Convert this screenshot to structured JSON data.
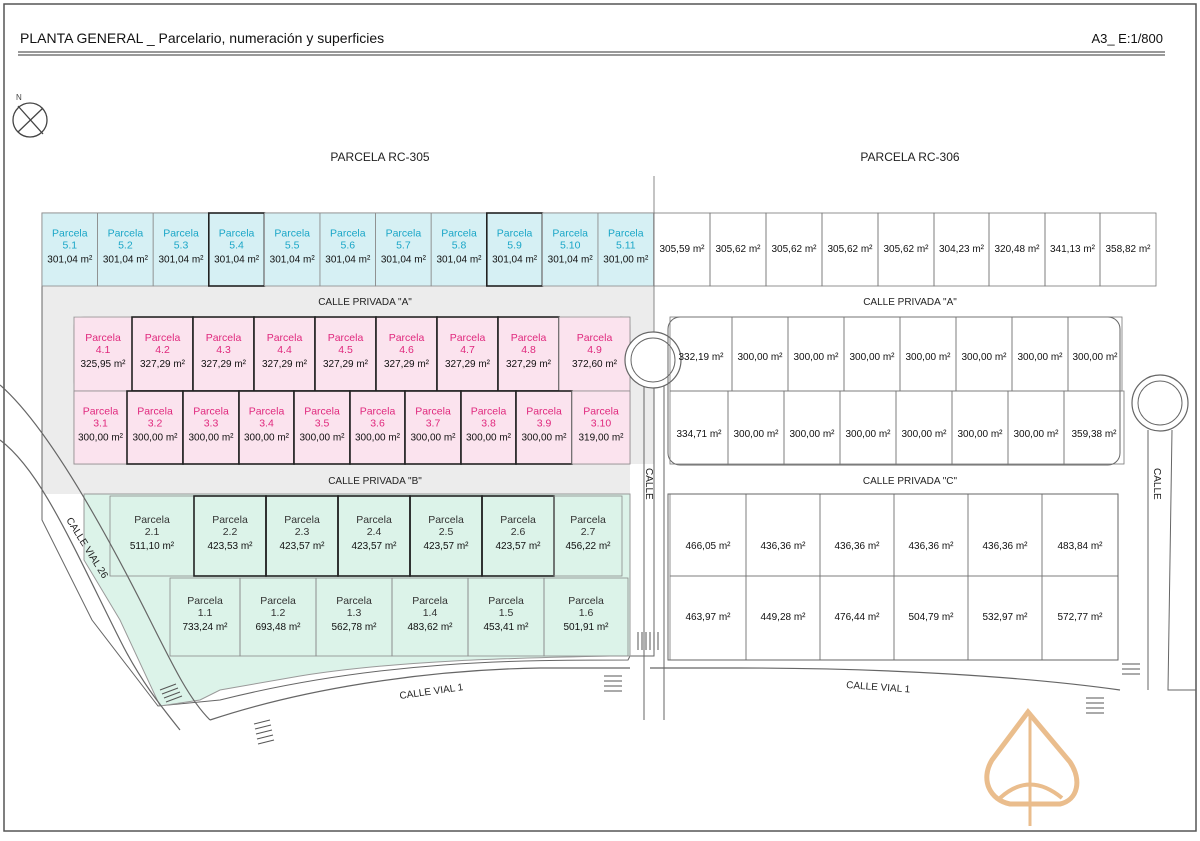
{
  "header": {
    "title": "PLANTA GENERAL _ Parcelario, numeración y superficies",
    "scale": "A3_ E:1/800"
  },
  "north_label": "N",
  "zones": {
    "rc305": "PARCELA RC-305",
    "rc306": "PARCELA RC-306"
  },
  "streets": {
    "privada_a_left": "CALLE PRIVADA \"A\"",
    "privada_a_right": "CALLE PRIVADA \"A\"",
    "privada_b": "CALLE PRIVADA \"B\"",
    "privada_c": "CALLE PRIVADA \"C\"",
    "calle_mid": "CALLE",
    "calle_right": "CALLE",
    "vial_26": "CALLE VIAL 26",
    "vial_1_left": "CALLE VIAL 1",
    "vial_1_right": "CALLE VIAL 1"
  },
  "colors": {
    "row5": "#d6f0f4",
    "row5_text": "#1aa6c7",
    "row4_3": "#fbe3ee",
    "row4_3_text": "#e0287d",
    "row2_1": "#dcf3e9",
    "road": "#ececec",
    "line": "#333333",
    "watermark": "#e3a867"
  },
  "parcels": {
    "word": "Parcela",
    "row5": [
      {
        "num": "5.1",
        "area": "301,04 m²"
      },
      {
        "num": "5.2",
        "area": "301,04 m²"
      },
      {
        "num": "5.3",
        "area": "301,04 m²"
      },
      {
        "num": "5.4",
        "area": "301,04 m²"
      },
      {
        "num": "5.5",
        "area": "301,04 m²"
      },
      {
        "num": "5.6",
        "area": "301,04 m²"
      },
      {
        "num": "5.7",
        "area": "301,04 m²"
      },
      {
        "num": "5.8",
        "area": "301,04 m²"
      },
      {
        "num": "5.9",
        "area": "301,04 m²"
      },
      {
        "num": "5.10",
        "area": "301,04 m²"
      },
      {
        "num": "5.11",
        "area": "301,00 m²"
      }
    ],
    "row4": [
      {
        "num": "4.1",
        "area": "325,95 m²"
      },
      {
        "num": "4.2",
        "area": "327,29 m²"
      },
      {
        "num": "4.3",
        "area": "327,29 m²"
      },
      {
        "num": "4.4",
        "area": "327,29 m²"
      },
      {
        "num": "4.5",
        "area": "327,29 m²"
      },
      {
        "num": "4.6",
        "area": "327,29 m²"
      },
      {
        "num": "4.7",
        "area": "327,29 m²"
      },
      {
        "num": "4.8",
        "area": "327,29 m²"
      },
      {
        "num": "4.9",
        "area": "372,60 m²"
      }
    ],
    "row3": [
      {
        "num": "3.1",
        "area": "300,00 m²"
      },
      {
        "num": "3.2",
        "area": "300,00 m²"
      },
      {
        "num": "3.3",
        "area": "300,00 m²"
      },
      {
        "num": "3.4",
        "area": "300,00 m²"
      },
      {
        "num": "3.5",
        "area": "300,00 m²"
      },
      {
        "num": "3.6",
        "area": "300,00 m²"
      },
      {
        "num": "3.7",
        "area": "300,00 m²"
      },
      {
        "num": "3.8",
        "area": "300,00 m²"
      },
      {
        "num": "3.9",
        "area": "300,00 m²"
      },
      {
        "num": "3.10",
        "area": "319,00 m²"
      }
    ],
    "row2": [
      {
        "num": "2.1",
        "area": "511,10 m²"
      },
      {
        "num": "2.2",
        "area": "423,53 m²"
      },
      {
        "num": "2.3",
        "area": "423,57 m²"
      },
      {
        "num": "2.4",
        "area": "423,57 m²"
      },
      {
        "num": "2.5",
        "area": "423,57 m²"
      },
      {
        "num": "2.6",
        "area": "423,57 m²"
      },
      {
        "num": "2.7",
        "area": "456,22 m²"
      }
    ],
    "row1": [
      {
        "num": "1.1",
        "area": "733,24 m²"
      },
      {
        "num": "1.2",
        "area": "693,48 m²"
      },
      {
        "num": "1.3",
        "area": "562,78 m²"
      },
      {
        "num": "1.4",
        "area": "483,62 m²"
      },
      {
        "num": "1.5",
        "area": "453,41 m²"
      },
      {
        "num": "1.6",
        "area": "501,91 m²"
      }
    ],
    "right_a": [
      "305,59 m²",
      "305,62 m²",
      "305,62 m²",
      "305,62 m²",
      "305,62 m²",
      "304,23 m²",
      "320,48 m²",
      "341,13 m²",
      "358,82 m²"
    ],
    "right_b": [
      "332,19 m²",
      "300,00 m²",
      "300,00 m²",
      "300,00 m²",
      "300,00 m²",
      "300,00 m²",
      "300,00 m²",
      "300,00 m²"
    ],
    "right_c": [
      "334,71 m²",
      "300,00 m²",
      "300,00 m²",
      "300,00 m²",
      "300,00 m²",
      "300,00 m²",
      "300,00 m²",
      "359,38 m²"
    ],
    "right_d": [
      "466,05 m²",
      "436,36 m²",
      "436,36 m²",
      "436,36 m²",
      "436,36 m²",
      "483,84 m²"
    ],
    "right_e": [
      "463,97 m²",
      "449,28 m²",
      "476,44 m²",
      "504,79 m²",
      "532,97 m²",
      "572,77 m²"
    ]
  }
}
